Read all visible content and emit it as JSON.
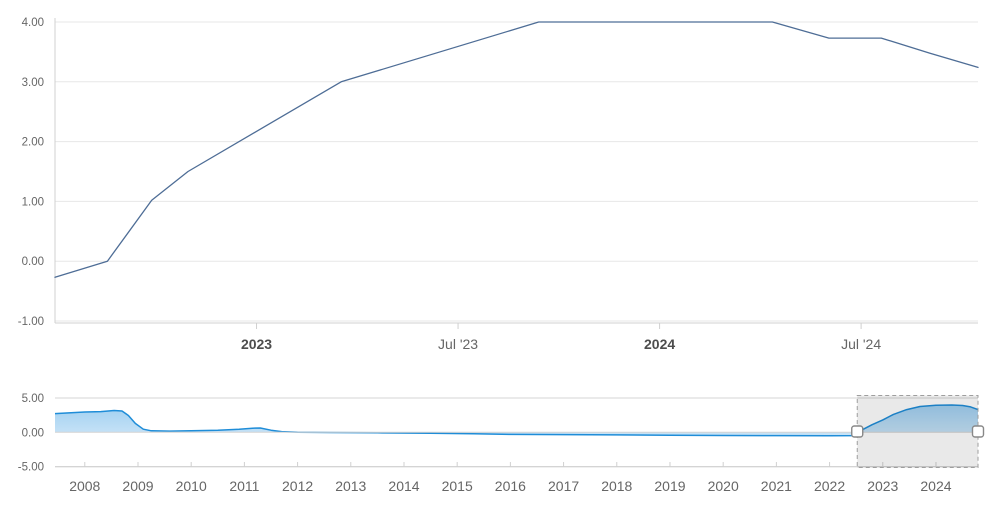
{
  "colors": {
    "background": "#ffffff",
    "grid_main": "#e7e7e7",
    "grid_nav": "#d4d4d4",
    "axis_line": "#d0d0d0",
    "label": "#666666",
    "label_bold": "#4d4d4d",
    "main_line": "#4e6d96",
    "nav_line": "#1f8dd8",
    "nav_fill_top": "#93c9ef",
    "nav_fill_bottom": "#f2f8fd",
    "selection_mask": "rgba(0,0,0,0.085)",
    "selection_border": "#9e9e9e",
    "handle_fill": "#ffffff",
    "handle_border": "#888888"
  },
  "chart_data": [
    {
      "name": "main-rate-chart",
      "type": "line",
      "title": "",
      "xlabel": "",
      "ylabel": "",
      "x_range": [
        2022.5,
        2024.79
      ],
      "ylim": [
        -1.05,
        4.12
      ],
      "grid": true,
      "legend": "none",
      "y_axis": [
        {
          "value": 4,
          "label": "4.00"
        },
        {
          "value": 3,
          "label": "3.00"
        },
        {
          "value": 2,
          "label": "2.00"
        },
        {
          "value": 1,
          "label": "1.00"
        },
        {
          "value": 0,
          "label": "0.00"
        },
        {
          "value": -1,
          "label": "-1.00"
        }
      ],
      "x_axis": [
        {
          "value": 2023.0,
          "label": "2023",
          "bold": true
        },
        {
          "value": 2023.5,
          "label": "Jul '23",
          "bold": false
        },
        {
          "value": 2024.0,
          "label": "2024",
          "bold": true
        },
        {
          "value": 2024.5,
          "label": "Jul '24",
          "bold": false
        }
      ],
      "series": [
        {
          "name": "policy-rate",
          "points": [
            [
              2022.5,
              -0.27
            ],
            [
              2022.63,
              0.0
            ],
            [
              2022.74,
              1.02
            ],
            [
              2022.83,
              1.5
            ],
            [
              2023.21,
              3.0
            ],
            [
              2023.7,
              4.0
            ],
            [
              2024.28,
              4.0
            ],
            [
              2024.42,
              3.73
            ],
            [
              2024.55,
              3.73
            ],
            [
              2024.67,
              3.48
            ],
            [
              2024.79,
              3.24
            ]
          ]
        }
      ]
    },
    {
      "name": "navigator-chart",
      "type": "area",
      "title": "",
      "x_range": [
        2007.44,
        2024.79
      ],
      "ylim": [
        -5.2,
        5.4
      ],
      "grid": true,
      "y_axis": [
        {
          "value": 5,
          "label": "5.00"
        },
        {
          "value": 0,
          "label": "0.00"
        },
        {
          "value": -5,
          "label": "-5.00"
        }
      ],
      "x_axis": [
        {
          "value": 2008,
          "label": "2008"
        },
        {
          "value": 2009,
          "label": "2009"
        },
        {
          "value": 2010,
          "label": "2010"
        },
        {
          "value": 2011,
          "label": "2011"
        },
        {
          "value": 2012,
          "label": "2012"
        },
        {
          "value": 2013,
          "label": "2013"
        },
        {
          "value": 2014,
          "label": "2014"
        },
        {
          "value": 2015,
          "label": "2015"
        },
        {
          "value": 2016,
          "label": "2016"
        },
        {
          "value": 2017,
          "label": "2017"
        },
        {
          "value": 2018,
          "label": "2018"
        },
        {
          "value": 2019,
          "label": "2019"
        },
        {
          "value": 2020,
          "label": "2020"
        },
        {
          "value": 2021,
          "label": "2021"
        },
        {
          "value": 2022,
          "label": "2022"
        },
        {
          "value": 2023,
          "label": "2023"
        },
        {
          "value": 2024,
          "label": "2024"
        }
      ],
      "series": [
        {
          "name": "policy-rate-history",
          "points": [
            [
              2007.44,
              2.72
            ],
            [
              2008.0,
              2.95
            ],
            [
              2008.3,
              3.02
            ],
            [
              2008.55,
              3.18
            ],
            [
              2008.7,
              3.1
            ],
            [
              2008.82,
              2.45
            ],
            [
              2008.95,
              1.3
            ],
            [
              2009.1,
              0.45
            ],
            [
              2009.25,
              0.22
            ],
            [
              2009.6,
              0.18
            ],
            [
              2010.0,
              0.24
            ],
            [
              2010.5,
              0.3
            ],
            [
              2010.9,
              0.45
            ],
            [
              2011.15,
              0.6
            ],
            [
              2011.3,
              0.62
            ],
            [
              2011.5,
              0.3
            ],
            [
              2011.7,
              0.1
            ],
            [
              2012.0,
              0.02
            ],
            [
              2012.6,
              -0.03
            ],
            [
              2013.5,
              -0.07
            ],
            [
              2014.5,
              -0.15
            ],
            [
              2015.3,
              -0.22
            ],
            [
              2016.0,
              -0.3
            ],
            [
              2017.0,
              -0.34
            ],
            [
              2018.0,
              -0.38
            ],
            [
              2019.0,
              -0.42
            ],
            [
              2020.0,
              -0.46
            ],
            [
              2021.0,
              -0.48
            ],
            [
              2022.0,
              -0.5
            ],
            [
              2022.45,
              -0.48
            ],
            [
              2022.6,
              0.3
            ],
            [
              2022.8,
              1.1
            ],
            [
              2023.0,
              1.8
            ],
            [
              2023.2,
              2.6
            ],
            [
              2023.45,
              3.3
            ],
            [
              2023.7,
              3.75
            ],
            [
              2024.0,
              3.95
            ],
            [
              2024.3,
              3.97
            ],
            [
              2024.5,
              3.9
            ],
            [
              2024.65,
              3.7
            ],
            [
              2024.79,
              3.3
            ]
          ]
        }
      ],
      "selection": {
        "from": 2022.52,
        "to": 2024.79
      }
    }
  ]
}
